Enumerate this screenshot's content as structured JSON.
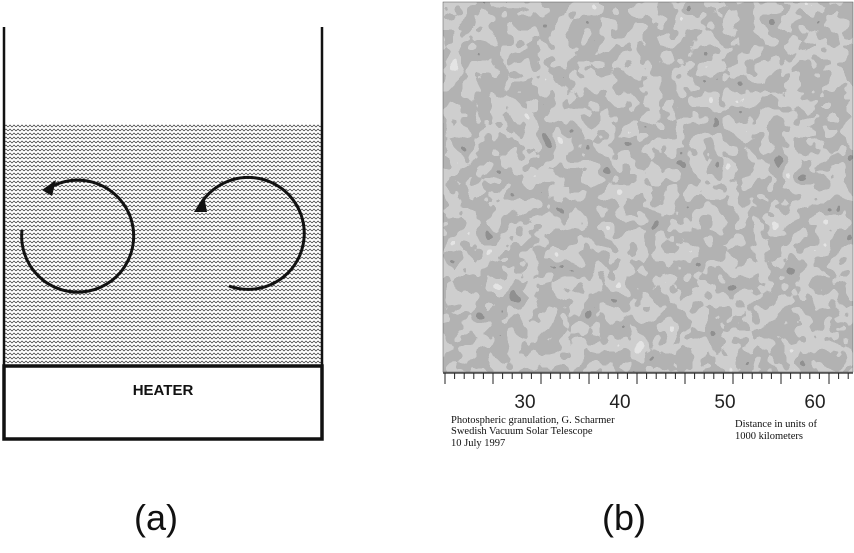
{
  "panel_a": {
    "heater_label": "HEATER",
    "label": "(a)",
    "colors": {
      "line": "#111111",
      "fluid_wave": "#222222"
    },
    "cells": [
      {
        "name": "left-convection-cell",
        "direction": "counterclockwise"
      },
      {
        "name": "right-convection-cell",
        "direction": "clockwise"
      }
    ]
  },
  "panel_b": {
    "label": "(b)",
    "scale_labels": [
      "30",
      "40",
      "50",
      "60"
    ],
    "caption_lines": [
      "Photospheric granulation, G. Scharmer",
      "Swedish Vacuum Solar Telescope",
      "10 July 1997"
    ],
    "units_lines": [
      "Distance in units of",
      "1000 kilometers"
    ]
  }
}
